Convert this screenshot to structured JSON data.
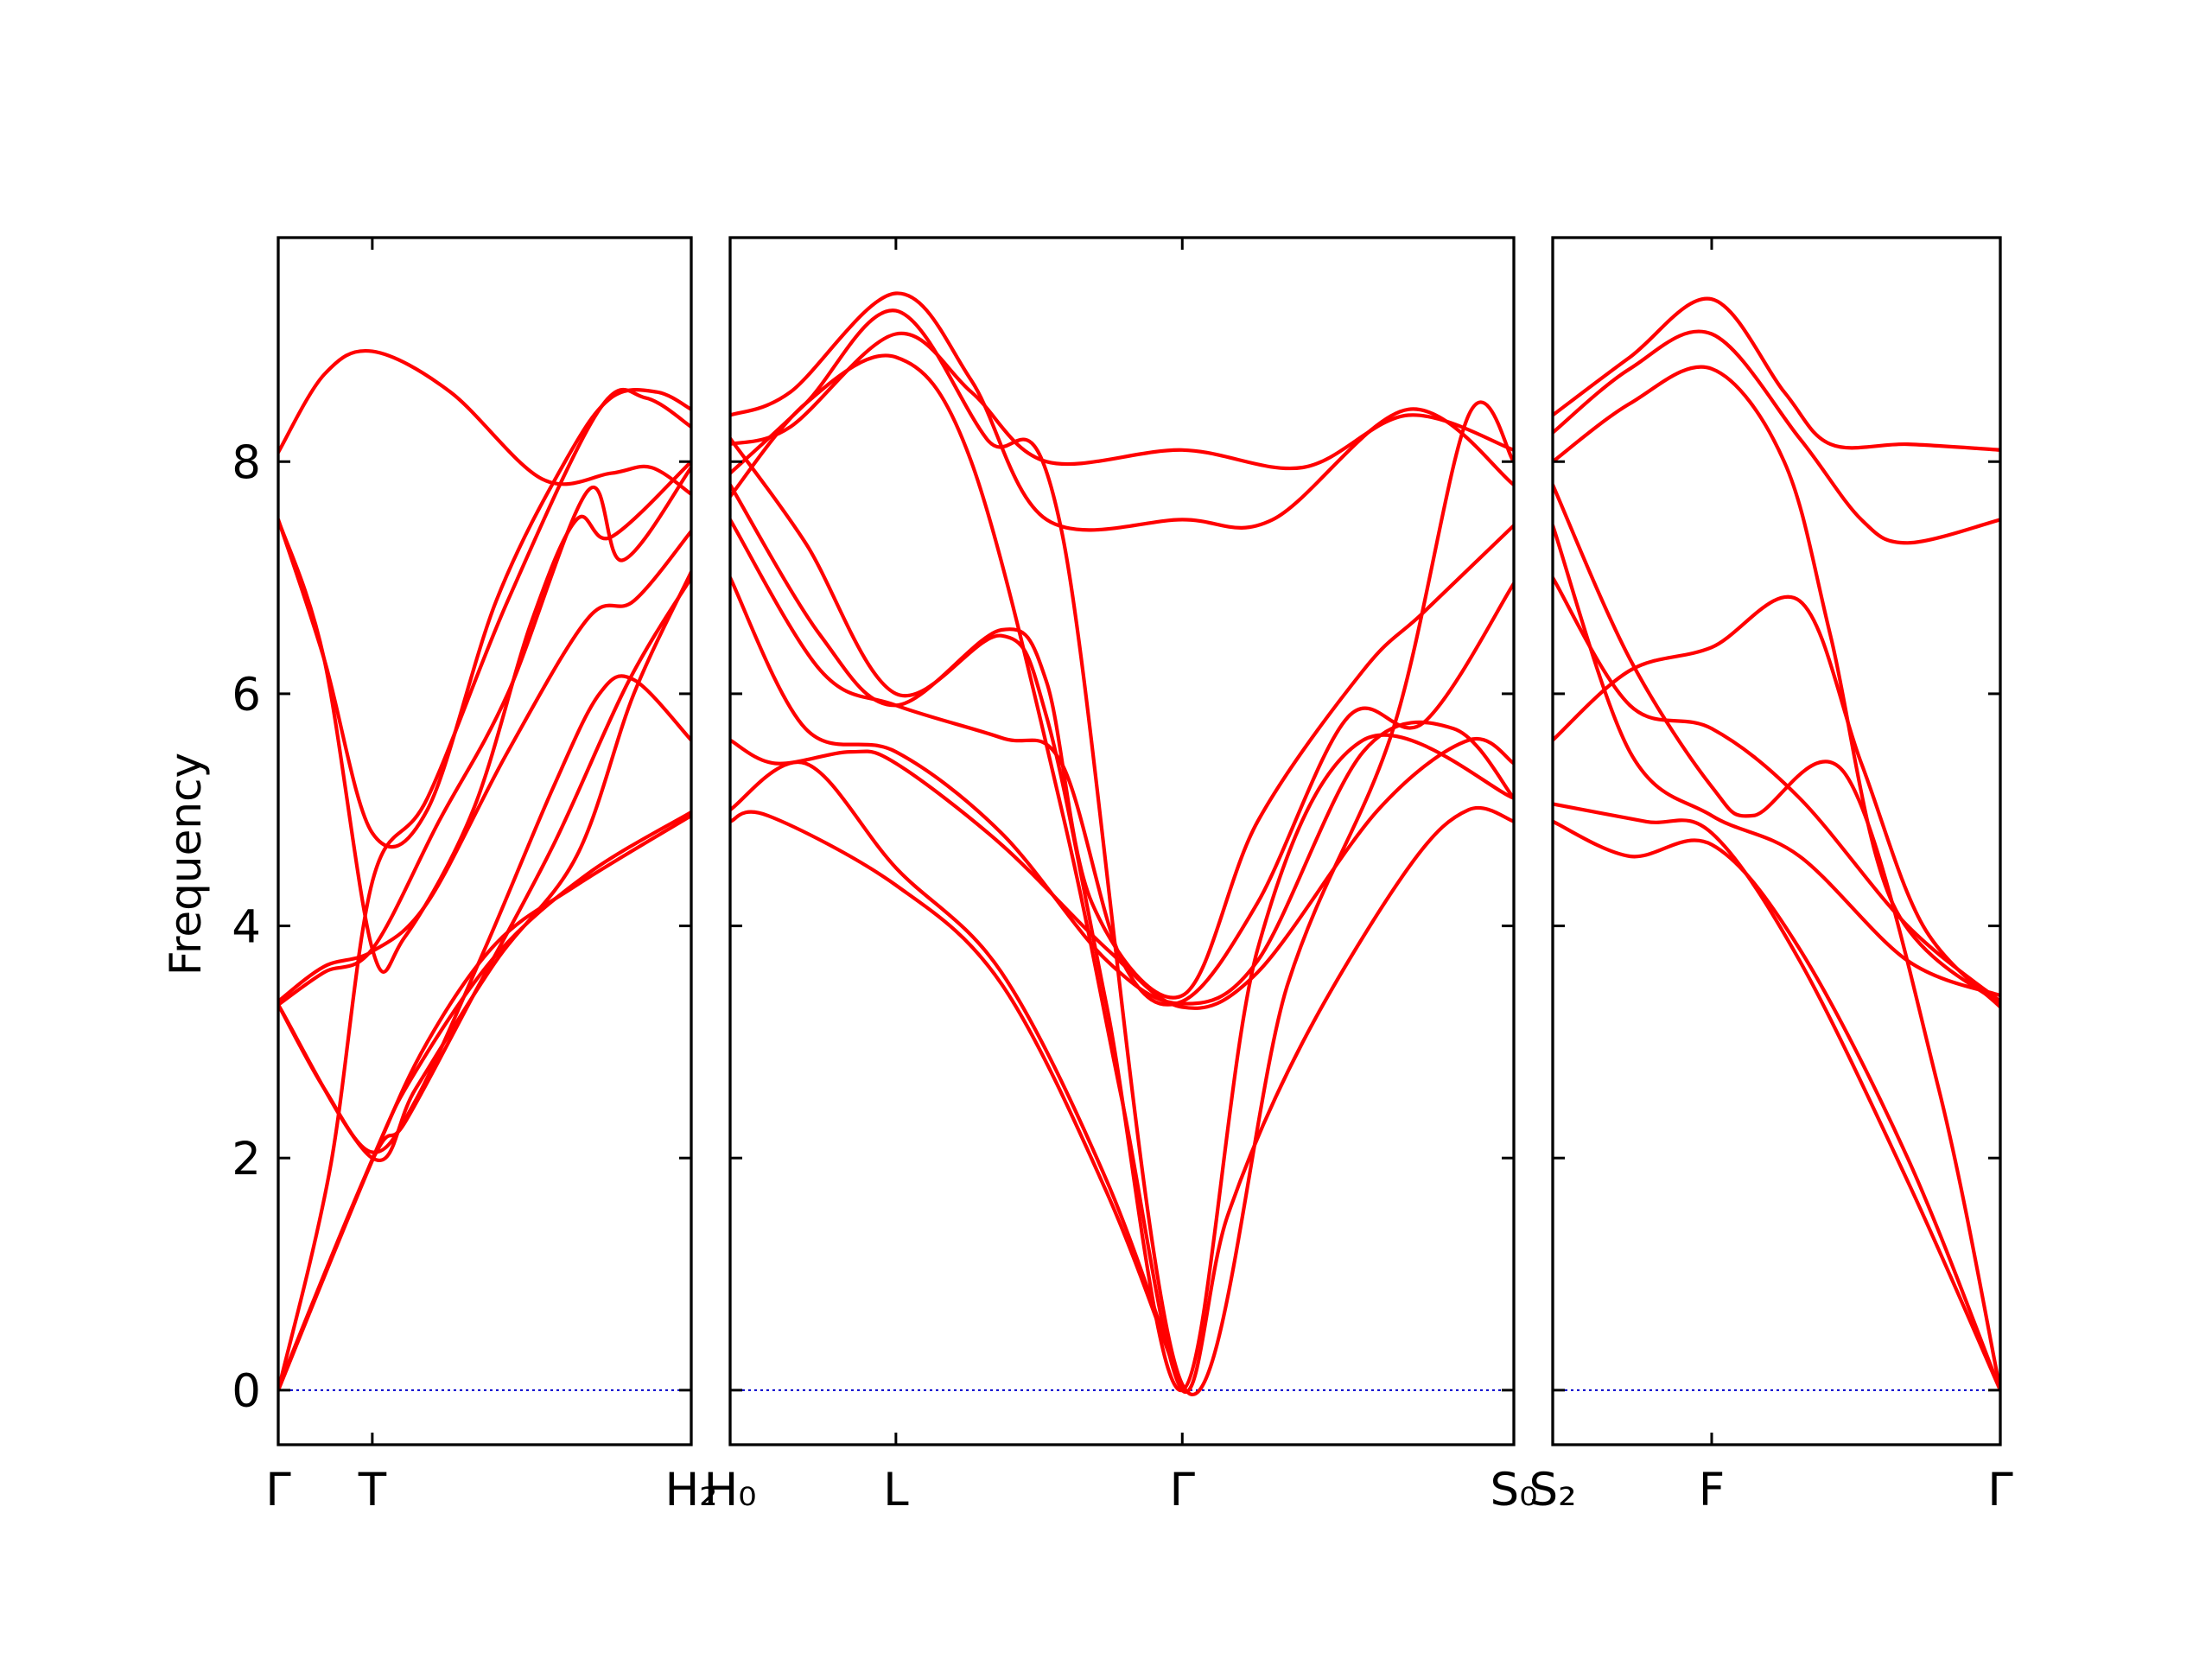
{
  "chart_data": {
    "type": "line",
    "ylabel": "Frequency",
    "ylim": [
      -0.47,
      9.93
    ],
    "yticks": [
      0,
      2,
      4,
      6,
      8
    ],
    "band_color": "#ff0000",
    "zero_line_color": "#0000cc",
    "panels": [
      {
        "xlim": [
          0,
          3.6
        ],
        "ticks": [
          {
            "x": 0,
            "label": "Γ"
          },
          {
            "x": 0.82,
            "label": "T"
          },
          {
            "x": 3.6,
            "label": "H₂"
          }
        ],
        "bands": [
          [
            [
              0,
              0
            ],
            [
              0.82,
              1.98
            ],
            [
              1.3,
              3.0
            ],
            [
              1.9,
              3.85
            ],
            [
              2.6,
              4.35
            ],
            [
              3.6,
              4.95
            ]
          ],
          [
            [
              0,
              0
            ],
            [
              0.82,
              1.99
            ],
            [
              1.2,
              2.75
            ],
            [
              1.9,
              3.75
            ],
            [
              2.7,
              4.45
            ],
            [
              3.6,
              4.98
            ]
          ],
          [
            [
              0,
              0
            ],
            [
              0.45,
              1.9
            ],
            [
              0.82,
              4.38
            ],
            [
              1.3,
              5.1
            ],
            [
              2.0,
              6.8
            ],
            [
              2.8,
              8.45
            ],
            [
              3.2,
              8.55
            ],
            [
              3.6,
              8.3
            ]
          ],
          [
            [
              0,
              3.32
            ],
            [
              0.4,
              2.6
            ],
            [
              0.82,
              2.05
            ],
            [
              1.2,
              2.5
            ],
            [
              1.8,
              3.8
            ],
            [
              2.4,
              5.2
            ],
            [
              2.8,
              6.0
            ],
            [
              3.1,
              6.12
            ],
            [
              3.6,
              5.6
            ]
          ],
          [
            [
              0,
              3.35
            ],
            [
              0.4,
              3.65
            ],
            [
              0.82,
              3.78
            ],
            [
              1.3,
              4.2
            ],
            [
              2.0,
              5.5
            ],
            [
              2.7,
              6.65
            ],
            [
              3.1,
              6.8
            ],
            [
              3.6,
              7.4
            ]
          ],
          [
            [
              0,
              7.5
            ],
            [
              0.4,
              6.3
            ],
            [
              0.82,
              4.8
            ],
            [
              1.3,
              5.0
            ],
            [
              1.9,
              6.8
            ],
            [
              2.5,
              8.0
            ],
            [
              2.9,
              8.55
            ],
            [
              3.3,
              8.6
            ],
            [
              3.6,
              8.45
            ]
          ],
          [
            [
              0,
              7.5
            ],
            [
              0.4,
              6.3
            ],
            [
              0.82,
              3.8
            ],
            [
              1.1,
              3.9
            ],
            [
              1.7,
              5.0
            ],
            [
              2.2,
              6.6
            ],
            [
              2.6,
              7.5
            ],
            [
              2.9,
              7.35
            ],
            [
              3.6,
              8.0
            ]
          ],
          [
            [
              0,
              8.08
            ],
            [
              0.4,
              8.75
            ],
            [
              0.82,
              8.95
            ],
            [
              1.5,
              8.6
            ],
            [
              2.3,
              7.85
            ],
            [
              2.9,
              7.9
            ],
            [
              3.25,
              7.95
            ],
            [
              3.6,
              7.72
            ]
          ],
          [
            [
              0,
              3.32
            ],
            [
              0.4,
              3.6
            ],
            [
              0.82,
              3.8
            ],
            [
              1.4,
              4.9
            ],
            [
              2.0,
              6.0
            ],
            [
              2.7,
              7.75
            ],
            [
              3.0,
              7.15
            ],
            [
              3.6,
              7.95
            ]
          ],
          [
            [
              0,
              0.02
            ],
            [
              0.82,
              1.98
            ],
            [
              1.1,
              2.3
            ],
            [
              1.7,
              3.4
            ],
            [
              2.4,
              4.7
            ],
            [
              3.05,
              6.1
            ],
            [
              3.6,
              7.0
            ]
          ],
          [
            [
              0,
              3.32
            ],
            [
              0.82,
              2.0
            ],
            [
              1.2,
              2.6
            ],
            [
              1.9,
              3.7
            ],
            [
              2.6,
              4.6
            ],
            [
              3.1,
              6.0
            ],
            [
              3.6,
              7.05
            ]
          ]
        ]
      },
      {
        "xlim": [
          0,
          5.2
        ],
        "ticks": [
          {
            "x": 0,
            "label": "H₀"
          },
          {
            "x": 1.1,
            "label": "L"
          },
          {
            "x": 3.0,
            "label": "Γ"
          },
          {
            "x": 5.2,
            "label": "S₀"
          }
        ],
        "bands": [
          [
            [
              0,
              4.9
            ],
            [
              0.25,
              4.95
            ],
            [
              1.1,
              4.35
            ],
            [
              1.8,
              3.5
            ],
            [
              2.5,
              1.7
            ],
            [
              3.0,
              0
            ]
          ],
          [
            [
              0,
              5.0
            ],
            [
              0.5,
              5.4
            ],
            [
              1.1,
              4.5
            ],
            [
              1.8,
              3.6
            ],
            [
              2.5,
              1.8
            ],
            [
              3.0,
              0
            ]
          ],
          [
            [
              0,
              5.6
            ],
            [
              0.3,
              5.4
            ],
            [
              0.8,
              5.5
            ],
            [
              1.1,
              5.4
            ],
            [
              1.8,
              4.7
            ],
            [
              2.5,
              3.8
            ],
            [
              3.0,
              3.3
            ],
            [
              3.5,
              3.6
            ],
            [
              4.3,
              5.0
            ],
            [
              4.9,
              5.6
            ],
            [
              5.2,
              5.4
            ]
          ],
          [
            [
              0,
              7.0
            ],
            [
              0.5,
              5.7
            ],
            [
              1.1,
              5.5
            ],
            [
              1.8,
              4.8
            ],
            [
              2.5,
              3.7
            ],
            [
              3.0,
              3.33
            ],
            [
              3.5,
              3.7
            ],
            [
              4.2,
              5.5
            ],
            [
              4.8,
              5.7
            ],
            [
              5.2,
              5.1
            ]
          ],
          [
            [
              0,
              7.5
            ],
            [
              0.6,
              6.2
            ],
            [
              1.1,
              5.9
            ],
            [
              1.8,
              5.62
            ],
            [
              2.2,
              5.4
            ],
            [
              2.6,
              3.7
            ],
            [
              3.0,
              3.35
            ],
            [
              3.5,
              4.2
            ],
            [
              4.1,
              5.8
            ],
            [
              4.6,
              5.75
            ],
            [
              5.2,
              6.95
            ]
          ],
          [
            [
              0,
              7.8
            ],
            [
              0.6,
              6.5
            ],
            [
              1.1,
              5.9
            ],
            [
              1.8,
              6.55
            ],
            [
              2.1,
              6.1
            ],
            [
              2.4,
              4.2
            ],
            [
              3.0,
              3.4
            ],
            [
              3.5,
              4.9
            ],
            [
              4.2,
              6.2
            ],
            [
              4.6,
              6.7
            ],
            [
              5.2,
              7.45
            ]
          ],
          [
            [
              0,
              8.2
            ],
            [
              0.5,
              7.3
            ],
            [
              1.1,
              6.0
            ],
            [
              1.8,
              6.5
            ],
            [
              2.1,
              5.8
            ],
            [
              2.5,
              3.3
            ],
            [
              3.0,
              0
            ],
            [
              3.5,
              3.8
            ],
            [
              4.2,
              5.6
            ],
            [
              5.2,
              5.1
            ]
          ],
          [
            [
              0,
              7.7
            ],
            [
              0.5,
              8.5
            ],
            [
              1.1,
              8.9
            ],
            [
              1.6,
              8.0
            ],
            [
              2.2,
              5.0
            ],
            [
              2.6,
              2.5
            ],
            [
              3.0,
              0
            ],
            [
              3.3,
              1.5
            ],
            [
              3.8,
              3.0
            ],
            [
              4.5,
              4.5
            ],
            [
              4.9,
              5.0
            ],
            [
              5.2,
              4.9
            ]
          ],
          [
            [
              0,
              8.15
            ],
            [
              0.4,
              8.3
            ],
            [
              1.1,
              9.1
            ],
            [
              1.6,
              8.6
            ],
            [
              2.1,
              8.0
            ],
            [
              3.0,
              8.1
            ],
            [
              3.8,
              7.95
            ],
            [
              4.5,
              8.4
            ],
            [
              5.2,
              8.1
            ]
          ],
          [
            [
              0,
              8.4
            ],
            [
              0.4,
              8.6
            ],
            [
              1.1,
              9.45
            ],
            [
              1.6,
              8.7
            ],
            [
              2.1,
              7.5
            ],
            [
              3.0,
              7.5
            ],
            [
              3.6,
              7.5
            ],
            [
              4.5,
              8.45
            ],
            [
              5.2,
              7.8
            ]
          ],
          [
            [
              0,
              7.9
            ],
            [
              0.5,
              8.5
            ],
            [
              1.1,
              9.3
            ],
            [
              1.7,
              8.2
            ],
            [
              2.2,
              7.4
            ],
            [
              3.0,
              0.05
            ],
            [
              3.7,
              3.5
            ],
            [
              4.4,
              5.7
            ],
            [
              4.9,
              8.4
            ],
            [
              5.2,
              8.0
            ]
          ]
        ]
      },
      {
        "xlim": [
          0,
          2.9
        ],
        "ticks": [
          {
            "x": 0,
            "label": "S₂"
          },
          {
            "x": 1.03,
            "label": "F"
          },
          {
            "x": 2.9,
            "label": "Γ"
          }
        ],
        "bands": [
          [
            [
              0,
              4.9
            ],
            [
              0.5,
              4.6
            ],
            [
              1.03,
              4.7
            ],
            [
              1.6,
              3.8
            ],
            [
              2.3,
              2.0
            ],
            [
              2.9,
              0
            ]
          ],
          [
            [
              0,
              5.05
            ],
            [
              0.6,
              4.9
            ],
            [
              1.03,
              4.8
            ],
            [
              1.6,
              3.7
            ],
            [
              2.3,
              1.8
            ],
            [
              2.9,
              0
            ]
          ],
          [
            [
              0,
              5.6
            ],
            [
              0.5,
              6.2
            ],
            [
              1.03,
              6.4
            ],
            [
              1.6,
              6.8
            ],
            [
              2.0,
              5.4
            ],
            [
              2.4,
              4.0
            ],
            [
              2.9,
              3.3
            ]
          ],
          [
            [
              0,
              7.0
            ],
            [
              0.5,
              5.9
            ],
            [
              1.03,
              5.7
            ],
            [
              1.6,
              5.1
            ],
            [
              2.3,
              4.0
            ],
            [
              2.9,
              3.35
            ]
          ],
          [
            [
              0,
              7.45
            ],
            [
              0.5,
              5.5
            ],
            [
              1.03,
              4.95
            ],
            [
              1.6,
              4.6
            ],
            [
              2.3,
              3.7
            ],
            [
              2.9,
              3.4
            ]
          ],
          [
            [
              0,
              7.8
            ],
            [
              0.5,
              6.3
            ],
            [
              1.03,
              5.2
            ],
            [
              1.3,
              4.95
            ],
            [
              1.9,
              5.3
            ],
            [
              2.5,
              2.6
            ],
            [
              2.9,
              0
            ]
          ],
          [
            [
              0,
              8.0
            ],
            [
              0.5,
              8.5
            ],
            [
              1.03,
              8.8
            ],
            [
              1.5,
              8.0
            ],
            [
              1.8,
              6.5
            ],
            [
              2.2,
              4.2
            ],
            [
              2.9,
              3.32
            ]
          ],
          [
            [
              0,
              8.25
            ],
            [
              0.5,
              8.8
            ],
            [
              1.03,
              9.1
            ],
            [
              1.6,
              8.2
            ],
            [
              2.0,
              7.5
            ],
            [
              2.3,
              7.3
            ],
            [
              2.9,
              7.5
            ]
          ],
          [
            [
              0,
              8.4
            ],
            [
              0.5,
              8.9
            ],
            [
              1.03,
              9.4
            ],
            [
              1.5,
              8.6
            ],
            [
              1.8,
              8.15
            ],
            [
              2.3,
              8.15
            ],
            [
              2.9,
              8.1
            ]
          ]
        ]
      }
    ]
  }
}
